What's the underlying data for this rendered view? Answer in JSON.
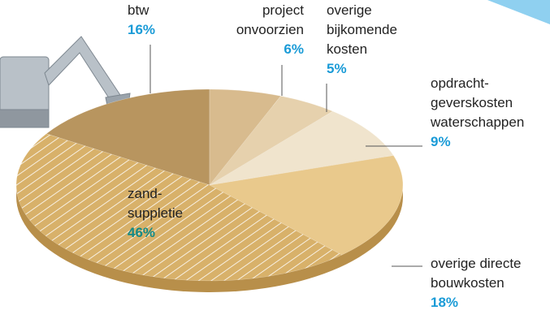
{
  "chart_data": {
    "type": "pie",
    "labels": [
      [
        "btw"
      ],
      [
        "project",
        "onvoorzien"
      ],
      [
        "overige",
        "bijkomende",
        "kosten"
      ],
      [
        "opdracht-",
        "geverskosten",
        "waterschappen"
      ],
      [
        "overige directe",
        "bouwkosten"
      ],
      [
        "zand-",
        "suppletie"
      ]
    ],
    "values": [
      16,
      6,
      5,
      9,
      18,
      46
    ],
    "value_labels": [
      "16%",
      "6%",
      "5%",
      "9%",
      "18%",
      "46%"
    ],
    "colors": [
      "#b8955f",
      "#d8bb8e",
      "#e6d1ad",
      "#f0e4cd",
      "#e9c98c",
      "#d8b16a"
    ],
    "value_label_colors": [
      "#1a9bd7",
      "#1a9bd7",
      "#1a9bd7",
      "#1a9bd7",
      "#1a9bd7",
      "#138a87"
    ]
  }
}
